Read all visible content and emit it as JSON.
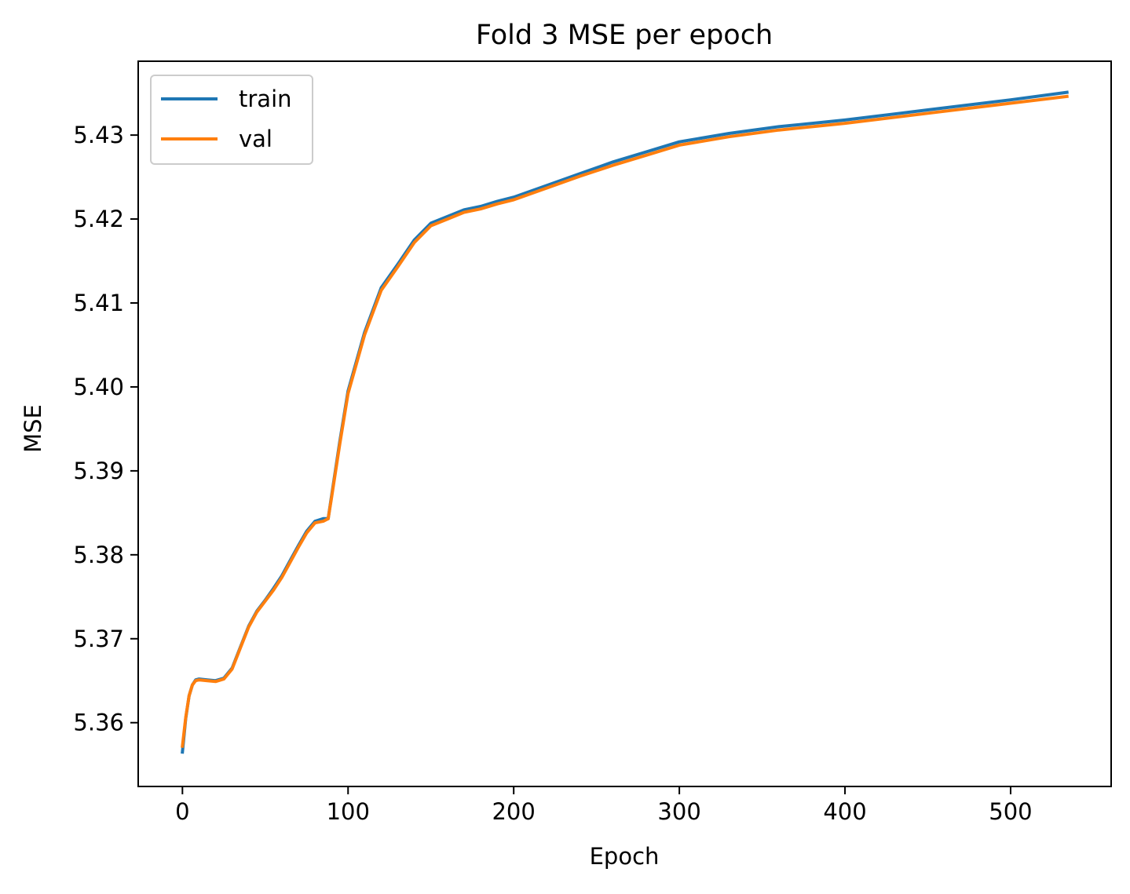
{
  "chart_data": {
    "type": "line",
    "title": "Fold 3 MSE per epoch",
    "xlabel": "Epoch",
    "ylabel": "MSE",
    "xlim": [
      -26.7,
      560.7
    ],
    "ylim": [
      5.3524,
      5.4388
    ],
    "xticks": [
      0,
      100,
      200,
      300,
      400,
      500
    ],
    "xtick_labels": [
      "0",
      "100",
      "200",
      "300",
      "400",
      "500"
    ],
    "yticks": [
      5.36,
      5.37,
      5.38,
      5.39,
      5.4,
      5.41,
      5.42,
      5.43
    ],
    "ytick_labels": [
      "5.36",
      "5.37",
      "5.38",
      "5.39",
      "5.40",
      "5.41",
      "5.42",
      "5.43"
    ],
    "grid": false,
    "legend_position": "upper-left",
    "series": [
      {
        "name": "train",
        "color": "#1f77b4",
        "x": [
          0,
          2,
          4,
          6,
          8,
          10,
          15,
          20,
          25,
          30,
          35,
          40,
          45,
          50,
          55,
          60,
          65,
          70,
          75,
          80,
          85,
          88,
          90,
          95,
          100,
          110,
          120,
          130,
          140,
          150,
          160,
          170,
          180,
          190,
          200,
          220,
          240,
          260,
          280,
          300,
          330,
          360,
          400,
          450,
          500,
          534
        ],
        "y": [
          5.3565,
          5.3605,
          5.3632,
          5.3645,
          5.3651,
          5.3652,
          5.3651,
          5.365,
          5.3653,
          5.3665,
          5.369,
          5.3715,
          5.3733,
          5.3746,
          5.376,
          5.3775,
          5.3793,
          5.3811,
          5.3828,
          5.384,
          5.3843,
          5.3843,
          5.387,
          5.3935,
          5.3995,
          5.4065,
          5.4118,
          5.4146,
          5.4175,
          5.4195,
          5.4203,
          5.4211,
          5.4215,
          5.4221,
          5.4226,
          5.424,
          5.4254,
          5.4268,
          5.428,
          5.4292,
          5.4302,
          5.431,
          5.4318,
          5.433,
          5.4342,
          5.4351
        ]
      },
      {
        "name": "val",
        "color": "#ff7f0e",
        "x": [
          0,
          2,
          4,
          6,
          8,
          10,
          15,
          20,
          25,
          30,
          35,
          40,
          45,
          50,
          55,
          60,
          65,
          70,
          75,
          80,
          85,
          88,
          90,
          95,
          100,
          110,
          120,
          130,
          140,
          150,
          160,
          170,
          180,
          190,
          200,
          220,
          240,
          260,
          280,
          300,
          330,
          360,
          400,
          450,
          500,
          534
        ],
        "y": [
          5.3572,
          5.3606,
          5.3632,
          5.3645,
          5.365,
          5.3651,
          5.365,
          5.3649,
          5.3652,
          5.3664,
          5.3689,
          5.3714,
          5.3732,
          5.3745,
          5.3758,
          5.3773,
          5.3791,
          5.3809,
          5.3826,
          5.3838,
          5.384,
          5.3843,
          5.3868,
          5.3932,
          5.3992,
          5.4062,
          5.4115,
          5.4143,
          5.4172,
          5.4192,
          5.42,
          5.4208,
          5.4212,
          5.4218,
          5.4223,
          5.4237,
          5.4251,
          5.4264,
          5.4276,
          5.4288,
          5.4298,
          5.4306,
          5.4314,
          5.4326,
          5.4338,
          5.4346
        ]
      }
    ]
  }
}
